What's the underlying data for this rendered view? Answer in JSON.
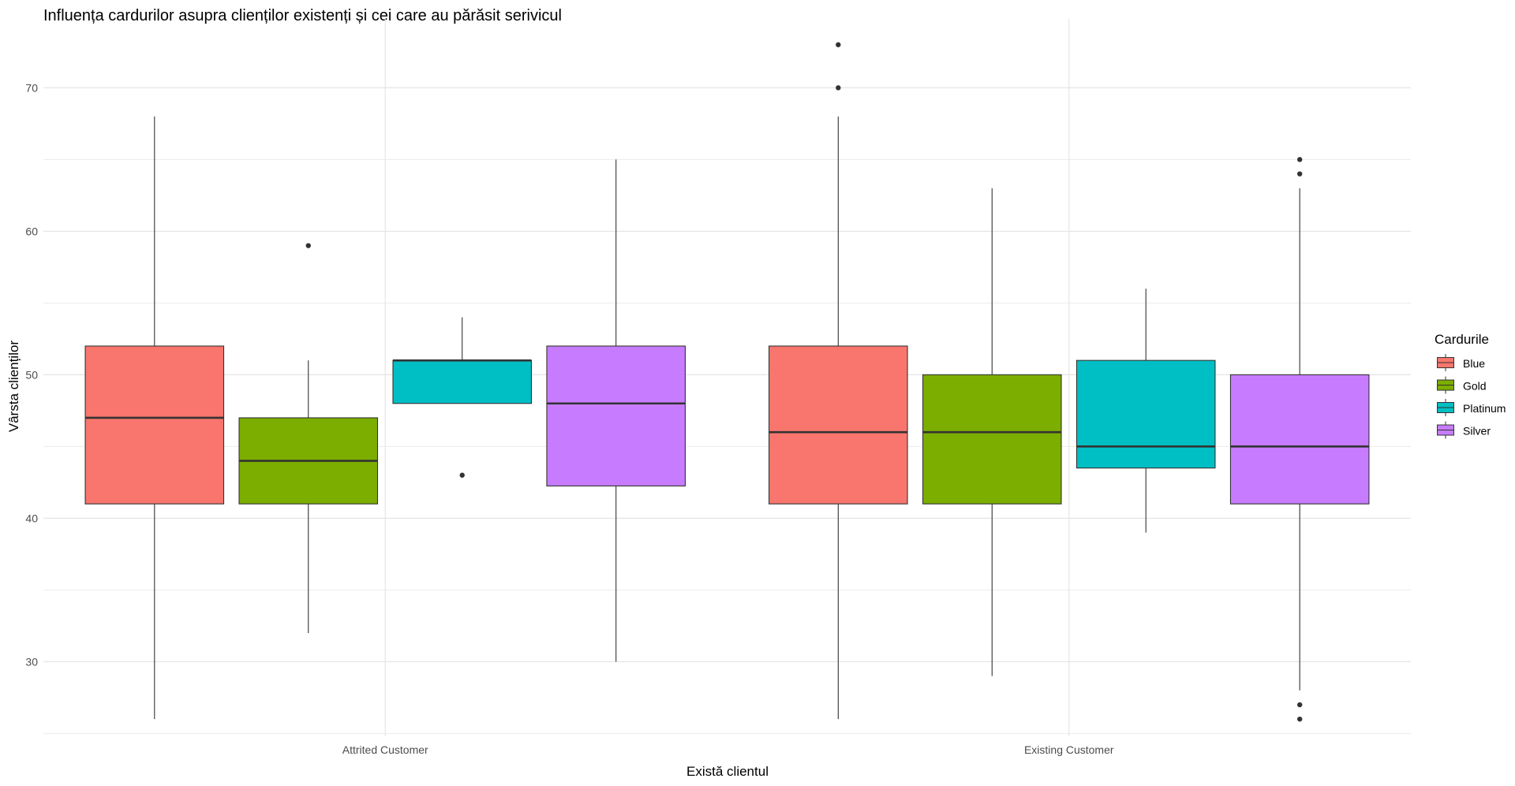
{
  "chart_data": {
    "type": "box",
    "title": "Influența cardurilor asupra clienților existenți și cei care au părăsit serivicul",
    "xlabel": "Există clientul",
    "ylabel": "Vârsta clienților",
    "categories": [
      "Attrited Customer",
      "Existing Customer"
    ],
    "y_ticks": [
      30,
      40,
      50,
      60,
      70
    ],
    "ylim": [
      24.8,
      74.8
    ],
    "grid": true,
    "legend": {
      "title": "Cardurile",
      "placement": "right",
      "entries": [
        "Blue",
        "Gold",
        "Platinum",
        "Silver"
      ]
    },
    "series": [
      {
        "name": "Blue",
        "color": "#F8766D",
        "values": [
          {
            "min": 26,
            "q1": 41,
            "median": 47,
            "q3": 52,
            "max": 68,
            "outliers": []
          },
          {
            "min": 26,
            "q1": 41,
            "median": 46,
            "q3": 52,
            "max": 68,
            "outliers": [
              70,
              73
            ]
          }
        ]
      },
      {
        "name": "Gold",
        "color": "#7CAE00",
        "values": [
          {
            "min": 32,
            "q1": 41,
            "median": 44,
            "q3": 47,
            "max": 51,
            "outliers": [
              59
            ]
          },
          {
            "min": 29,
            "q1": 41,
            "median": 46,
            "q3": 50,
            "max": 63,
            "outliers": []
          }
        ]
      },
      {
        "name": "Platinum",
        "color": "#00BFC4",
        "values": [
          {
            "min": 48,
            "q1": 48,
            "median": 51,
            "q3": 51,
            "max": 54,
            "outliers": [
              43
            ]
          },
          {
            "min": 39,
            "q1": 43.5,
            "median": 45,
            "q3": 51,
            "max": 56,
            "outliers": []
          }
        ]
      },
      {
        "name": "Silver",
        "color": "#C77CFF",
        "values": [
          {
            "min": 30,
            "q1": 42.25,
            "median": 48,
            "q3": 52,
            "max": 65,
            "outliers": []
          },
          {
            "min": 28,
            "q1": 41,
            "median": 45,
            "q3": 50,
            "max": 63,
            "outliers": [
              26,
              27,
              64,
              65
            ]
          }
        ]
      }
    ]
  }
}
